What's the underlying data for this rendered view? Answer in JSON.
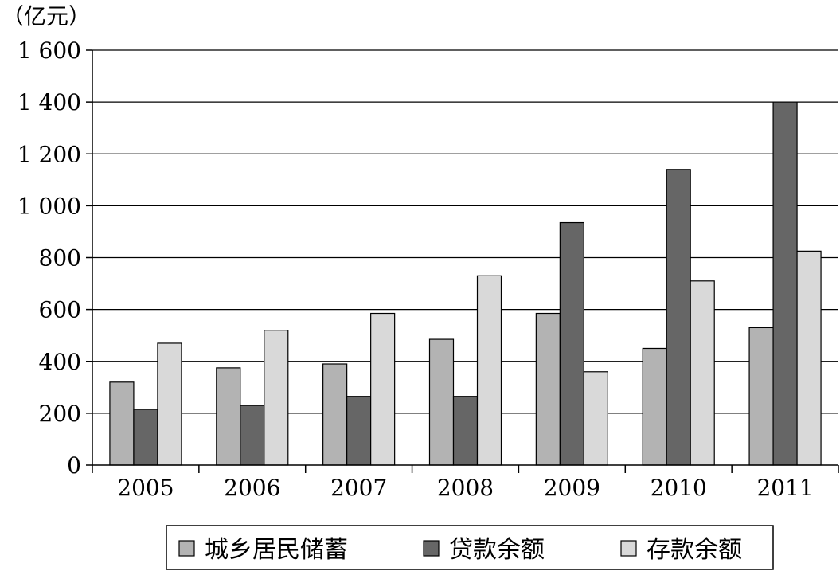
{
  "chart_data": {
    "type": "bar",
    "y_unit": "（亿元）",
    "categories": [
      "2005",
      "2006",
      "2007",
      "2008",
      "2009",
      "2010",
      "2011"
    ],
    "ylim": [
      0,
      1600
    ],
    "y_ticks": [
      0,
      200,
      400,
      600,
      800,
      1000,
      1200,
      1400,
      1600
    ],
    "y_tick_labels": [
      "0",
      "200",
      "400",
      "600",
      "800",
      "1 000",
      "1 200",
      "1 400",
      "1 600"
    ],
    "grid": true,
    "legend_position": "bottom",
    "series": [
      {
        "name": "城乡居民储蓄",
        "color": "#b3b3b3",
        "values": [
          320,
          375,
          390,
          485,
          585,
          450,
          530
        ]
      },
      {
        "name": "贷款余额",
        "color": "#666666",
        "values": [
          215,
          230,
          265,
          265,
          935,
          1140,
          1400
        ]
      },
      {
        "name": "存款余额",
        "color": "#d9d9d9",
        "values": [
          470,
          520,
          585,
          730,
          360,
          710,
          825
        ]
      }
    ]
  }
}
